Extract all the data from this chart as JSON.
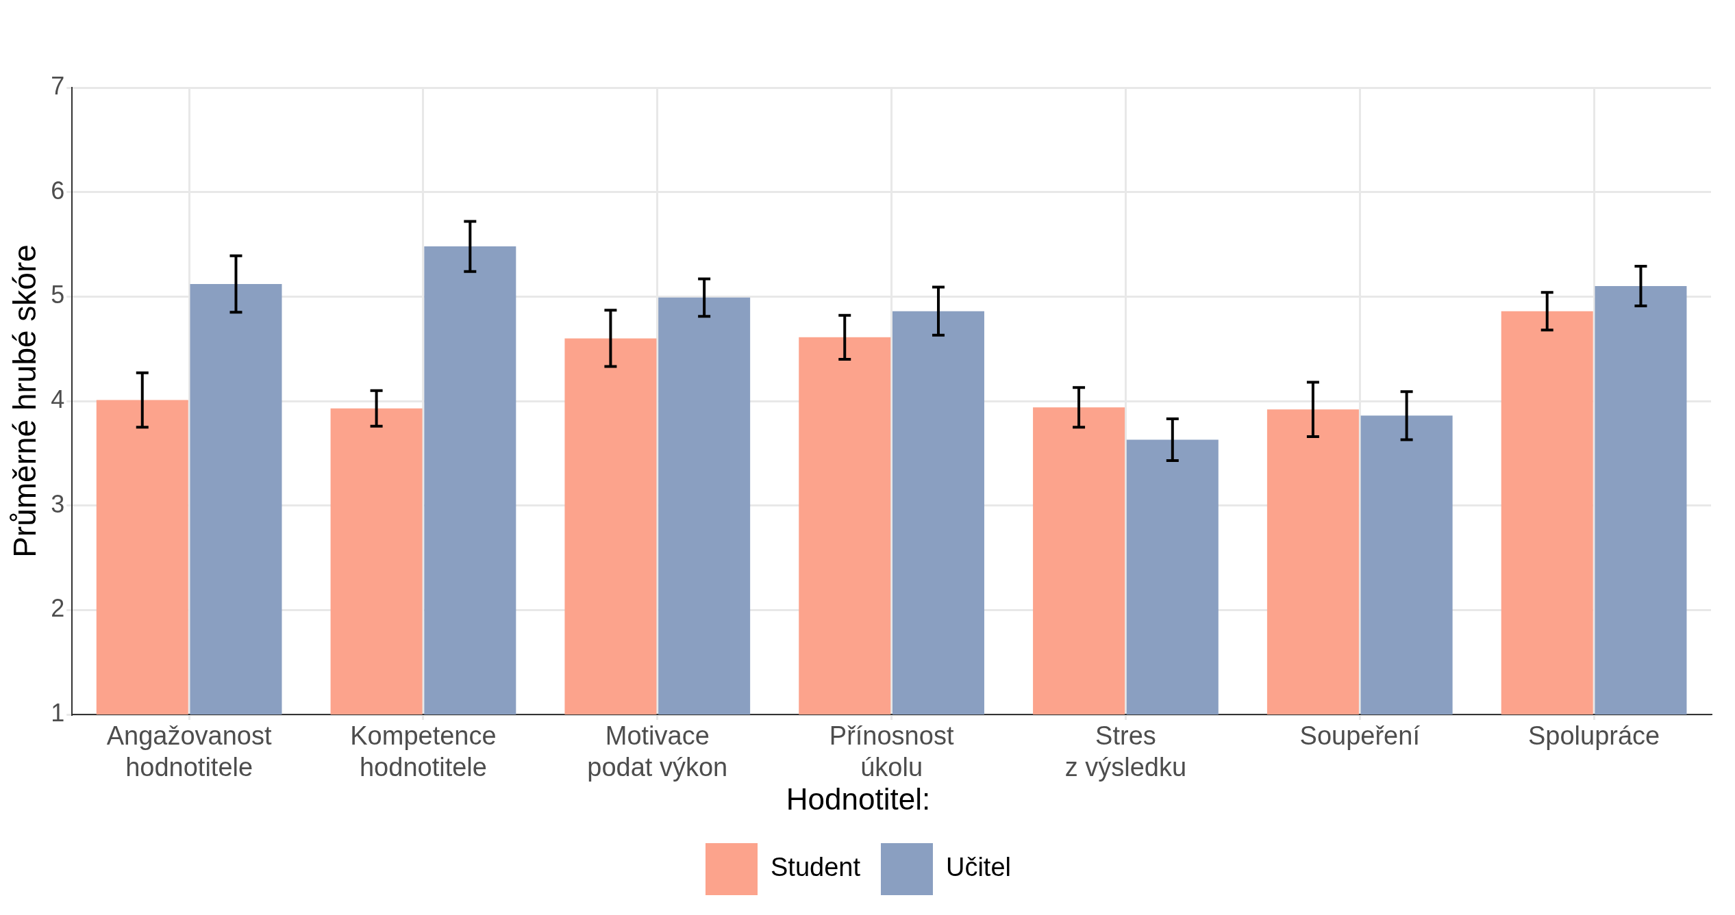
{
  "chart_data": {
    "type": "bar",
    "ylabel": "Průměrné hrubé skóre",
    "legend_title": "Hodnotitel:",
    "categories": [
      "Angažovanost\nhodnotitele",
      "Kompetence\nhodnotitele",
      "Motivace\npodat výkon",
      "Přínosnost\núkolu",
      "Stres\nz výsledku",
      "Soupeření",
      "Spolupráce"
    ],
    "series": [
      {
        "name": "Student",
        "color": "#fca38c",
        "values": [
          4.01,
          3.93,
          4.6,
          4.61,
          3.94,
          3.92,
          4.86
        ],
        "errors": [
          0.26,
          0.17,
          0.27,
          0.21,
          0.19,
          0.26,
          0.18
        ]
      },
      {
        "name": "Učitel",
        "color": "#8a9fc1",
        "values": [
          5.12,
          5.48,
          4.99,
          4.86,
          3.63,
          3.86,
          5.1
        ],
        "errors": [
          0.27,
          0.24,
          0.18,
          0.23,
          0.2,
          0.23,
          0.19
        ]
      }
    ],
    "ylim": [
      1,
      7
    ],
    "yticks": [
      1,
      2,
      3,
      4,
      5,
      6,
      7
    ],
    "grid": true,
    "legend": "bottom"
  }
}
